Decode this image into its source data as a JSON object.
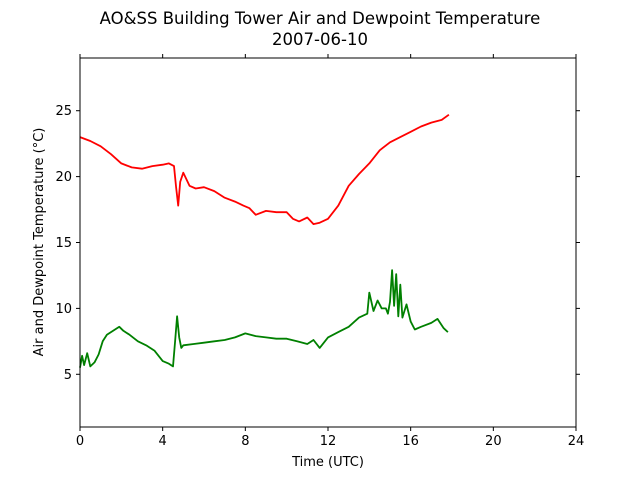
{
  "chart_data": {
    "type": "line",
    "title": "AO&SS Building Tower Air and Dewpoint Temperature",
    "subtitle": "2007-06-10",
    "xlabel": "Time (UTC)",
    "ylabel": "Air and Dewpoint Temperature (°C)",
    "xlim": [
      0,
      24
    ],
    "ylim": [
      1,
      29
    ],
    "xticks": [
      0,
      4,
      8,
      12,
      16,
      20,
      24
    ],
    "yticks": [
      5,
      10,
      15,
      20,
      25
    ],
    "grid": false,
    "legend": "none",
    "series": [
      {
        "color": "#ff0000",
        "x": [
          0.0,
          0.5,
          1.0,
          1.5,
          2.0,
          2.5,
          3.0,
          3.5,
          4.0,
          4.3,
          4.55,
          4.65,
          4.75,
          4.85,
          5.0,
          5.3,
          5.6,
          6.0,
          6.5,
          7.0,
          7.5,
          7.9,
          8.2,
          8.5,
          9.0,
          9.5,
          10.0,
          10.3,
          10.6,
          11.0,
          11.3,
          11.6,
          12.0,
          12.5,
          13.0,
          13.5,
          14.0,
          14.5,
          15.0,
          15.5,
          16.0,
          16.5,
          17.0,
          17.5,
          17.85
        ],
        "y": [
          23.0,
          22.7,
          22.3,
          21.7,
          21.0,
          20.7,
          20.6,
          20.8,
          20.9,
          21.0,
          20.8,
          19.2,
          17.8,
          19.6,
          20.3,
          19.3,
          19.1,
          19.2,
          18.9,
          18.4,
          18.1,
          17.8,
          17.6,
          17.1,
          17.4,
          17.3,
          17.3,
          16.8,
          16.6,
          16.9,
          16.4,
          16.5,
          16.8,
          17.8,
          19.3,
          20.2,
          21.0,
          22.0,
          22.6,
          23.0,
          23.4,
          23.8,
          24.1,
          24.3,
          24.7
        ]
      },
      {
        "color": "#008000",
        "x": [
          0.0,
          0.1,
          0.2,
          0.35,
          0.5,
          0.7,
          0.9,
          1.1,
          1.3,
          1.6,
          1.9,
          2.1,
          2.4,
          2.8,
          3.2,
          3.6,
          4.0,
          4.3,
          4.5,
          4.6,
          4.7,
          4.8,
          4.9,
          5.0,
          5.5,
          6.0,
          6.5,
          7.0,
          7.5,
          8.0,
          8.5,
          9.0,
          9.5,
          10.0,
          10.5,
          11.0,
          11.3,
          11.6,
          12.0,
          12.5,
          13.0,
          13.5,
          13.9,
          14.0,
          14.2,
          14.4,
          14.6,
          14.8,
          14.9,
          15.0,
          15.1,
          15.2,
          15.3,
          15.4,
          15.5,
          15.6,
          15.8,
          16.0,
          16.2,
          16.5,
          17.0,
          17.3,
          17.6,
          17.8
        ],
        "y": [
          5.5,
          6.4,
          5.7,
          6.6,
          5.6,
          5.9,
          6.5,
          7.5,
          8.0,
          8.3,
          8.6,
          8.3,
          8.0,
          7.5,
          7.2,
          6.8,
          6.0,
          5.8,
          5.6,
          7.5,
          9.4,
          7.8,
          7.0,
          7.2,
          7.3,
          7.4,
          7.5,
          7.6,
          7.8,
          8.1,
          7.9,
          7.8,
          7.7,
          7.7,
          7.5,
          7.3,
          7.6,
          7.0,
          7.8,
          8.2,
          8.6,
          9.3,
          9.6,
          11.2,
          9.8,
          10.6,
          10.0,
          10.0,
          9.6,
          10.5,
          12.9,
          10.2,
          12.6,
          9.4,
          11.8,
          9.3,
          10.3,
          9.0,
          8.4,
          8.6,
          8.9,
          9.2,
          8.5,
          8.2
        ]
      }
    ]
  }
}
